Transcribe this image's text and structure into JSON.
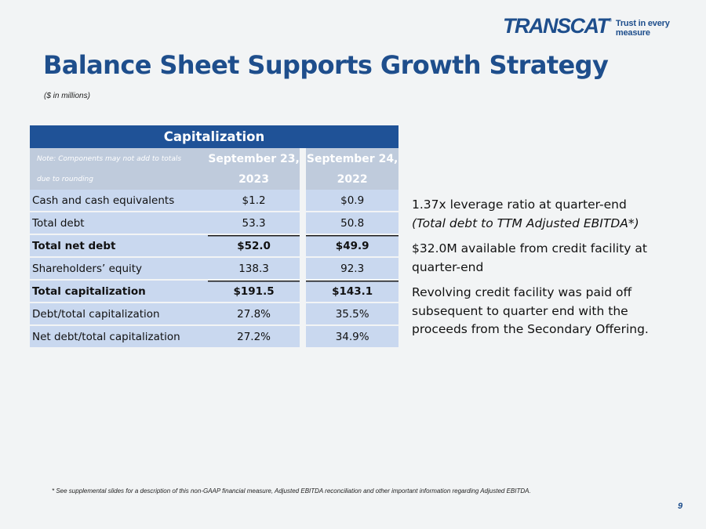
{
  "logo": {
    "word": "TRANSCAT",
    "registered": "®",
    "tagline": "Trust in every measure"
  },
  "title": "Balance Sheet Supports Growth Strategy",
  "subtitle": "($ in millions)",
  "table": {
    "header": "Capitalization",
    "note_line1": "Note: Components may not add to totals",
    "note_line2": "due to rounding",
    "col1_line1": "September 23,",
    "col1_line2": "2023",
    "col2_line1": "September 24,",
    "col2_line2": "2022",
    "rows": [
      {
        "label": "Cash and cash equivalents",
        "v1": "$1.2",
        "v2": "$0.9"
      },
      {
        "label": "Total debt",
        "v1": "53.3",
        "v2": "50.8"
      },
      {
        "label": "Total net debt",
        "v1": "$52.0",
        "v2": "$49.9"
      },
      {
        "label": "Shareholders’ equity",
        "v1": "138.3",
        "v2": "92.3"
      },
      {
        "label": "Total capitalization",
        "v1": "$191.5",
        "v2": "$143.1"
      },
      {
        "label": "Debt/total capitalization",
        "v1": "27.8%",
        "v2": "35.5%"
      },
      {
        "label": "Net debt/total capitalization",
        "v1": "27.2%",
        "v2": "34.9%"
      }
    ]
  },
  "bullets": {
    "b1_line1": "1.37x leverage ratio at quarter-end",
    "b1_line2": "(Total debt to TTM Adjusted EBITDA*)",
    "b2": "$32.0M available from credit facility at quarter-end",
    "b3": "Revolving credit facility was paid off subsequent to quarter end with the proceeds from the Secondary Offering."
  },
  "footnote": "* See supplemental slides for a description of this non-GAAP financial measure, Adjusted EBITDA reconciliation and other important information regarding Adjusted EBITDA.",
  "page_number": "9",
  "colors": {
    "brand_blue": "#1e4e8c",
    "header_blue": "#1f5297",
    "row_fill": "#c9d8ef",
    "subheader_fill": "#bfcbdc"
  }
}
